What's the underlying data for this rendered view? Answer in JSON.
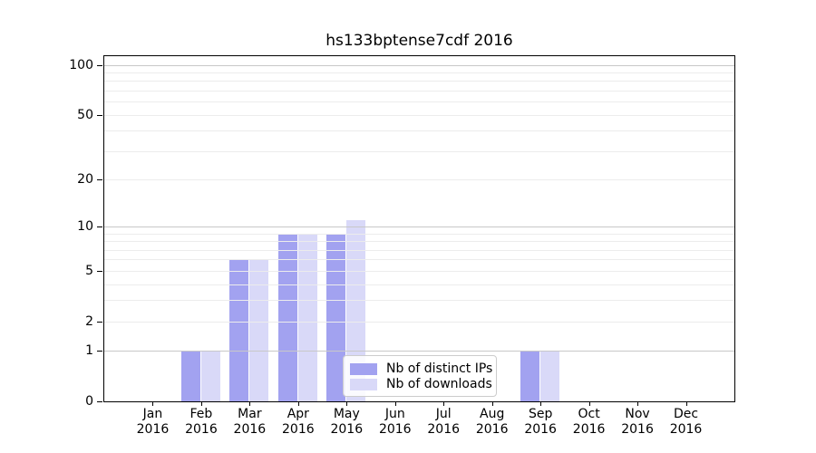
{
  "figure": {
    "background": "#ffffff",
    "spine_color": "#000000"
  },
  "chart_data": {
    "type": "bar",
    "title": "hs133bptense7cdf 2016",
    "categories": [
      "Jan",
      "Feb",
      "Mar",
      "Apr",
      "May",
      "Jun",
      "Jul",
      "Aug",
      "Sep",
      "Oct",
      "Nov",
      "Dec"
    ],
    "year": "2016",
    "series": [
      {
        "name": "Nb of distinct IPs",
        "color": "#a2a2f0",
        "values": [
          0,
          1,
          6,
          9,
          9,
          0,
          0,
          0,
          1,
          0,
          0,
          0
        ]
      },
      {
        "name": "Nb of downloads",
        "color": "#d9d9f8",
        "values": [
          0,
          1,
          6,
          9,
          11,
          0,
          0,
          0,
          1,
          0,
          0,
          0
        ]
      }
    ],
    "yscale": "log1p",
    "ylim": [
      0,
      113
    ],
    "yticks": [
      0,
      1,
      2,
      5,
      10,
      20,
      50,
      100
    ],
    "major_gridlines": [
      1,
      10,
      100
    ],
    "minor_gridlines": [
      2,
      3,
      4,
      5,
      6,
      7,
      8,
      9,
      20,
      30,
      40,
      50,
      60,
      70,
      80,
      90
    ],
    "grid": true,
    "legend_position": "lower center",
    "colors": {
      "major_grid": "#c8c8c8",
      "minor_grid": "#ececec"
    }
  }
}
